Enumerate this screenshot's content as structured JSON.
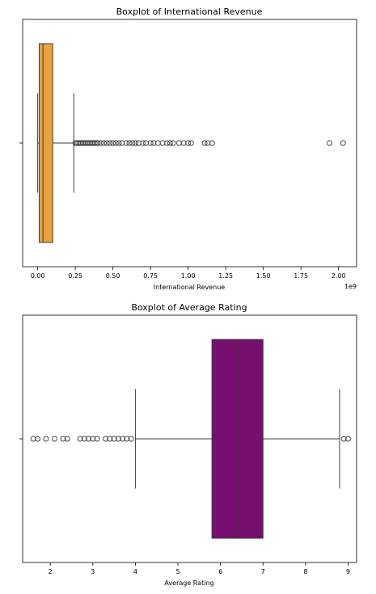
{
  "chart_data": [
    {
      "type": "box",
      "orientation": "horizontal",
      "title": "Boxplot of International Revenue",
      "xlabel": "International Revenue",
      "ylabel": "",
      "offset_label": "1e9",
      "xlim": [
        -0.1,
        2.12
      ],
      "xticks": [
        0.0,
        0.25,
        0.5,
        0.75,
        1.0,
        1.25,
        1.5,
        1.75,
        2.0
      ],
      "xtick_labels": [
        "0.00",
        "0.25",
        "0.50",
        "0.75",
        "1.00",
        "1.25",
        "1.50",
        "1.75",
        "2.00"
      ],
      "grid": false,
      "box": {
        "color": "#e8a33c",
        "whisker_low": 0.0,
        "q1": 0.01,
        "median": 0.035,
        "q3": 0.1,
        "whisker_high": 0.24
      },
      "outliers": [
        0.25,
        0.26,
        0.27,
        0.28,
        0.29,
        0.3,
        0.31,
        0.32,
        0.33,
        0.34,
        0.35,
        0.36,
        0.37,
        0.38,
        0.39,
        0.4,
        0.42,
        0.44,
        0.46,
        0.48,
        0.5,
        0.52,
        0.54,
        0.56,
        0.59,
        0.61,
        0.63,
        0.65,
        0.67,
        0.7,
        0.72,
        0.75,
        0.77,
        0.8,
        0.83,
        0.86,
        0.88,
        0.9,
        0.94,
        0.97,
        1.0,
        1.02,
        1.11,
        1.13,
        1.16,
        1.94,
        2.03
      ]
    },
    {
      "type": "box",
      "orientation": "horizontal",
      "title": "Boxplot of Average Rating",
      "xlabel": "Average Rating",
      "ylabel": "",
      "xlim": [
        1.35,
        9.2
      ],
      "xticks": [
        2,
        3,
        4,
        5,
        6,
        7,
        8,
        9
      ],
      "xtick_labels": [
        "2",
        "3",
        "4",
        "5",
        "6",
        "7",
        "8",
        "9"
      ],
      "grid": false,
      "box": {
        "color": "#760f6e",
        "whisker_low": 4.0,
        "q1": 5.8,
        "median": 6.4,
        "q3": 7.0,
        "whisker_high": 8.8
      },
      "outliers": [
        1.6,
        1.7,
        1.9,
        2.1,
        2.3,
        2.4,
        2.7,
        2.8,
        2.9,
        3.0,
        3.1,
        3.3,
        3.4,
        3.5,
        3.6,
        3.7,
        3.8,
        3.9,
        8.9,
        9.0
      ]
    }
  ]
}
